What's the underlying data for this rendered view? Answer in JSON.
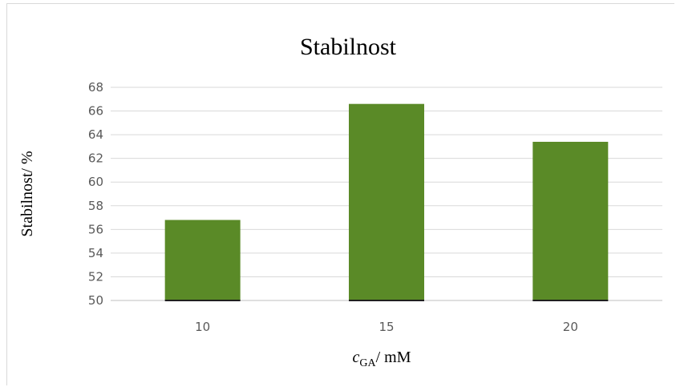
{
  "chart_data": {
    "type": "bar",
    "title": "Stabilnost",
    "categories": [
      "10",
      "15",
      "20"
    ],
    "values": [
      56.8,
      66.6,
      63.4
    ],
    "ylabel": "Stabilnost/ %",
    "xlabel": {
      "main": "c",
      "subscript": "GA",
      "rest": "/ mM"
    },
    "ylim": [
      50,
      68
    ],
    "yticks": [
      "50",
      "52",
      "54",
      "56",
      "58",
      "60",
      "62",
      "64",
      "66",
      "68"
    ],
    "bar_color": "#5a8a27",
    "grid": true,
    "legend": "none"
  }
}
